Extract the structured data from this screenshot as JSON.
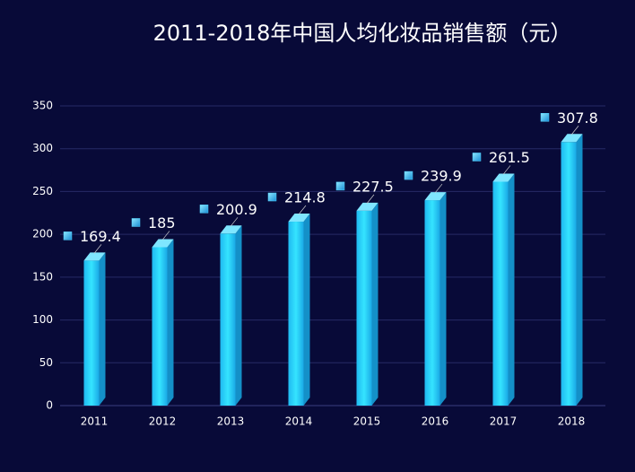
{
  "chart_data": {
    "type": "bar3d",
    "title": "2011-2018年中国人均化妆品销售额（元）",
    "categories": [
      "2011",
      "2012",
      "2013",
      "2014",
      "2015",
      "2016",
      "2017",
      "2018"
    ],
    "values": [
      169.4,
      185,
      200.9,
      214.8,
      227.5,
      239.9,
      261.5,
      307.8
    ],
    "color": "#2ad6fc",
    "ylim": [
      0,
      350
    ],
    "yticks": [
      0,
      50,
      100,
      150,
      200,
      250,
      300,
      350
    ],
    "grid": true
  }
}
